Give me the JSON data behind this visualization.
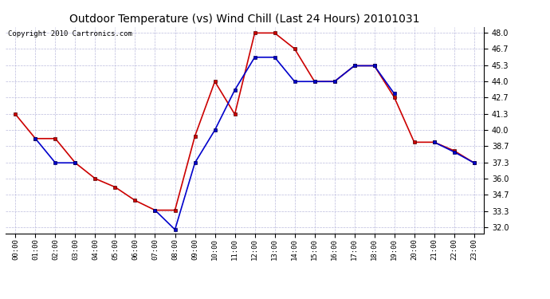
{
  "title": "Outdoor Temperature (vs) Wind Chill (Last 24 Hours) 20101031",
  "copyright": "Copyright 2010 Cartronics.com",
  "x_labels": [
    "00:00",
    "01:00",
    "02:00",
    "03:00",
    "04:00",
    "05:00",
    "06:00",
    "07:00",
    "08:00",
    "09:00",
    "10:00",
    "11:00",
    "12:00",
    "13:00",
    "14:00",
    "15:00",
    "16:00",
    "17:00",
    "18:00",
    "19:00",
    "20:00",
    "21:00",
    "22:00",
    "23:00"
  ],
  "temp_red": [
    41.3,
    39.3,
    39.3,
    37.3,
    36.0,
    35.3,
    34.2,
    33.4,
    33.4,
    39.5,
    44.0,
    41.3,
    48.0,
    48.0,
    46.7,
    44.0,
    44.0,
    45.3,
    45.3,
    42.7,
    39.0,
    39.0,
    38.3,
    37.3
  ],
  "wind_blue": [
    null,
    39.3,
    37.3,
    37.3,
    null,
    null,
    null,
    33.4,
    31.8,
    37.3,
    40.0,
    43.3,
    46.0,
    46.0,
    44.0,
    44.0,
    44.0,
    45.3,
    45.3,
    43.0,
    null,
    39.0,
    38.2,
    37.3
  ],
  "y_ticks": [
    32.0,
    33.3,
    34.7,
    36.0,
    37.3,
    38.7,
    40.0,
    41.3,
    42.7,
    44.0,
    45.3,
    46.7,
    48.0
  ],
  "y_min": 31.5,
  "y_max": 48.5,
  "red_color": "#cc0000",
  "blue_color": "#0000cc",
  "grid_color": "#bbbbdd",
  "bg_color": "#ffffff",
  "plot_bg_color": "#ffffff",
  "title_fontsize": 10,
  "copyright_fontsize": 6.5,
  "fig_width": 6.9,
  "fig_height": 3.75,
  "dpi": 100
}
